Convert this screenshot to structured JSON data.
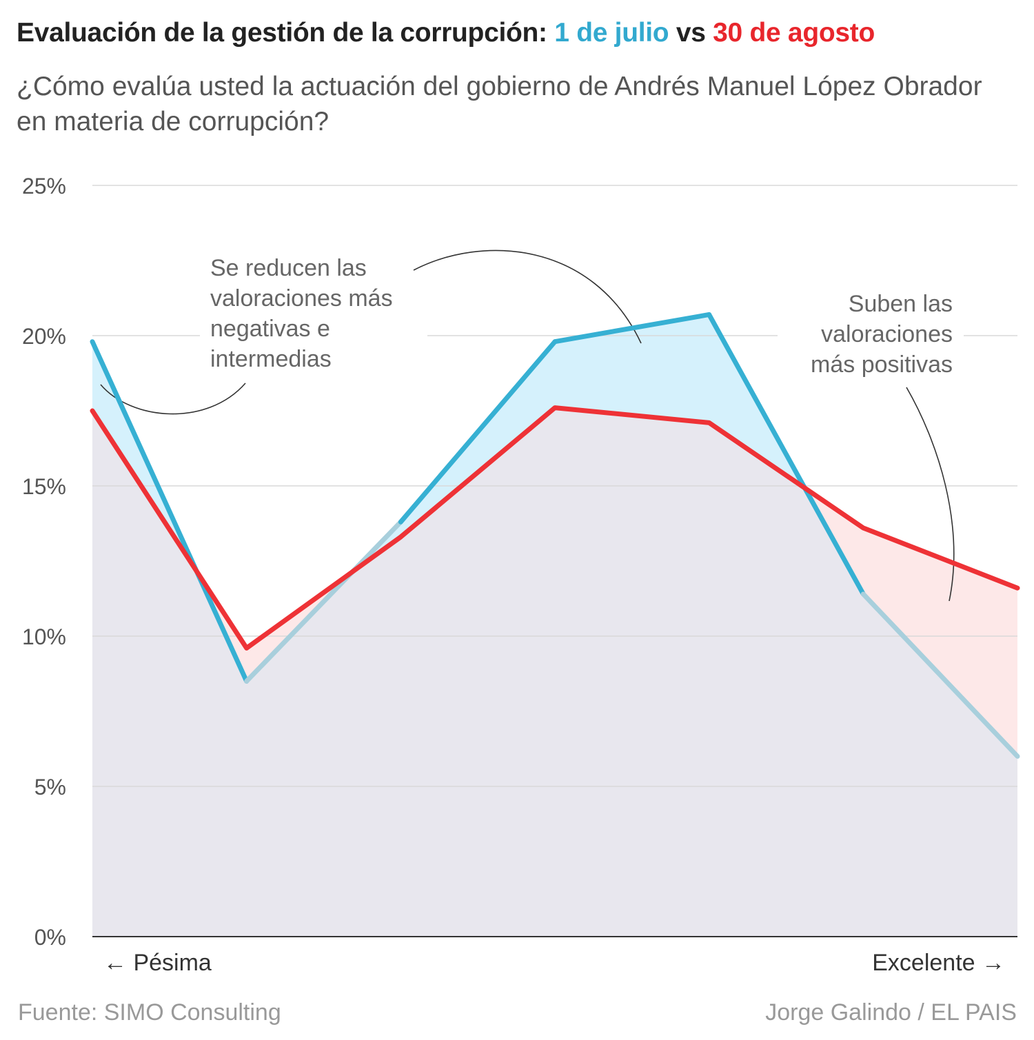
{
  "title": {
    "prefix": "Evaluación de la gestión de la corrupción: ",
    "series1": "1 de julio",
    "vs": " vs ",
    "series2": "30 de agosto"
  },
  "subtitle": "¿Cómo evalúa usted la actuación del gobierno de Andrés Manuel López Obrador en materia de corrupción?",
  "chart_data": {
    "type": "area",
    "x": [
      1,
      2,
      3,
      4,
      5,
      6,
      7
    ],
    "x_start_label": "← Pésima",
    "x_end_label": "Excelente →",
    "ylim": [
      0,
      25
    ],
    "y_ticks": [
      0,
      5,
      10,
      15,
      20,
      25
    ],
    "y_tick_labels": [
      "0%",
      "5%",
      "10%",
      "15%",
      "20%",
      "25%"
    ],
    "grid": true,
    "series": [
      {
        "name": "1 de julio",
        "color": "#36b0d3",
        "faded_color": "#a8cfdc",
        "values": [
          19.8,
          8.5,
          13.8,
          19.8,
          20.7,
          11.4,
          6.0
        ]
      },
      {
        "name": "30 de agosto",
        "color": "#ee3236",
        "values": [
          17.5,
          9.6,
          13.3,
          17.6,
          17.1,
          13.6,
          11.6
        ]
      }
    ],
    "annotations": [
      "Se reducen las valoraciones más negativas e intermedias",
      "Suben las valoraciones más positivas"
    ]
  },
  "source": "Fuente: SIMO Consulting",
  "credit": "Jorge Galindo / EL PAIS",
  "colors": {
    "grey_area": "#e8e7ee",
    "blue_area": "#d5f1fc",
    "red_area": "#fde8e8",
    "axis": "#333333",
    "grid": "#d9d9d9"
  }
}
